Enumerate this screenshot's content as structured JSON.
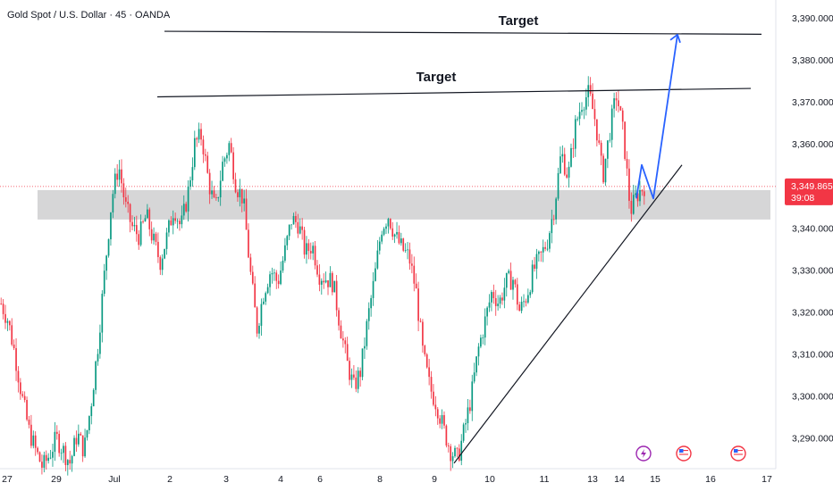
{
  "header": {
    "title": "Gold Spot / U.S. Dollar · 45 · OANDA"
  },
  "annotations": {
    "target_upper": "Target",
    "target_lower": "Target"
  },
  "price_label": {
    "price": "3,349.865",
    "countdown": "39:08",
    "color": "#f23645"
  },
  "colors": {
    "up": "#089981",
    "down": "#f23645",
    "zone": "#d1d1d3",
    "projection": "#2962ff",
    "line": "#131722"
  },
  "chart_data": {
    "type": "candlestick",
    "title": "",
    "xlabel": "",
    "ylabel": "",
    "ylim": [
      3283,
      3395
    ],
    "y_ticks": [
      "3,290.000",
      "3,300.000",
      "3,310.000",
      "3,320.000",
      "3,330.000",
      "3,340.000",
      "3,360.000",
      "3,370.000",
      "3,380.000",
      "3,390.000"
    ],
    "y_tick_values": [
      3290,
      3300,
      3310,
      3320,
      3330,
      3340,
      3360,
      3370,
      3380,
      3390
    ],
    "x_ticks": [
      "27",
      "29",
      "Jul",
      "2",
      "3",
      "4",
      "6",
      "8",
      "9",
      "10",
      "11",
      "13",
      "14",
      "15",
      "16",
      "17"
    ],
    "close_series": [
      3322,
      3318,
      3310,
      3300,
      3292,
      3287,
      3283,
      3286,
      3290,
      3287,
      3284,
      3291,
      3287,
      3298,
      3312,
      3330,
      3347,
      3355,
      3345,
      3340,
      3338,
      3343,
      3337,
      3332,
      3338,
      3345,
      3340,
      3348,
      3360,
      3362,
      3351,
      3344,
      3355,
      3360,
      3350,
      3347,
      3330,
      3316,
      3325,
      3330,
      3327,
      3334,
      3342,
      3341,
      3334,
      3336,
      3329,
      3328,
      3327,
      3317,
      3308,
      3302,
      3306,
      3318,
      3328,
      3340,
      3343,
      3338,
      3335,
      3333,
      3325,
      3310,
      3302,
      3298,
      3292,
      3287,
      3285,
      3292,
      3300,
      3311,
      3318,
      3325,
      3322,
      3327,
      3328,
      3320,
      3324,
      3330,
      3333,
      3337,
      3345,
      3358,
      3352,
      3364,
      3370,
      3372,
      3365,
      3352,
      3363,
      3372,
      3362,
      3344,
      3348,
      3350
    ],
    "zone": {
      "low": 3342,
      "high": 3349
    },
    "current_price": 3349.865,
    "levels": {
      "target_upper": 3386,
      "target_lower": 3373
    },
    "trendline": {
      "from": {
        "x": "9",
        "y": 3284
      },
      "to": {
        "x": "15",
        "y": 3355
      }
    },
    "projection": [
      3347,
      3355,
      3347,
      3386
    ],
    "event_icons": [
      "lightning-icon",
      "us-flag-icon",
      "us-flag-icon"
    ]
  }
}
